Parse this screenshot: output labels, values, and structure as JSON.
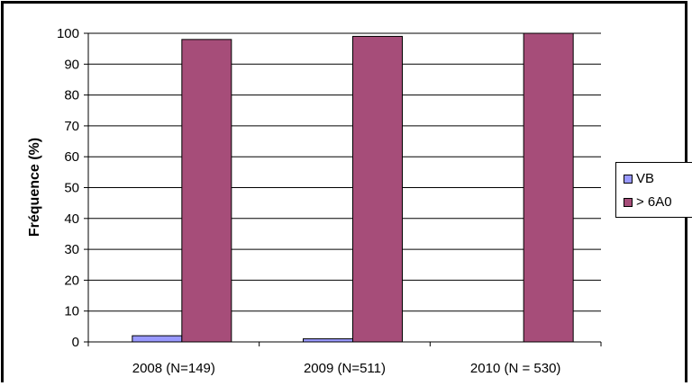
{
  "chart_data": {
    "type": "bar",
    "ylabel": "Fréquence (%)",
    "xlabel": "",
    "categories": [
      "2008 (N=149)",
      "2009 (N=511)",
      "2010 (N = 530)"
    ],
    "ylim": [
      0,
      100
    ],
    "yticks": [
      0,
      10,
      20,
      30,
      40,
      50,
      60,
      70,
      80,
      90,
      100
    ],
    "grid": true,
    "legend_position": "right",
    "series": [
      {
        "name": "VB",
        "values": [
          2,
          1,
          0
        ],
        "color": "#9999ff"
      },
      {
        "name": "> 6A0",
        "values": [
          98,
          99,
          100
        ],
        "color": "#a64d79"
      }
    ]
  }
}
